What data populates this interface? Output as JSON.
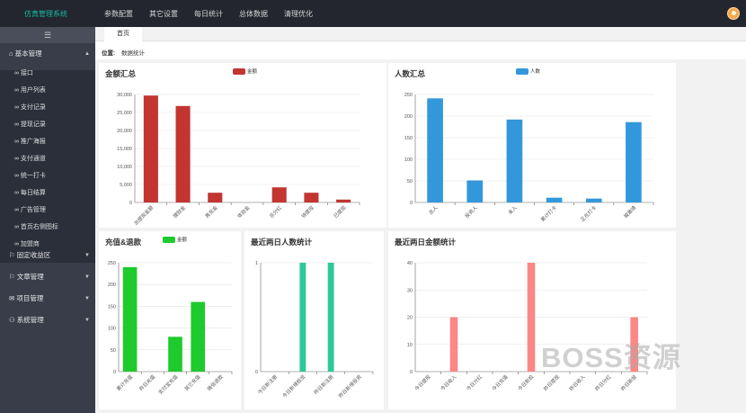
{
  "header": {
    "logo": "仿真管理系统",
    "nav": [
      "参数配置",
      "其它设置",
      "每日统计",
      "总体数据",
      "清理优化"
    ]
  },
  "sidebar": {
    "toggle_icon": "☰",
    "groups": [
      {
        "label": "⌂ 基本管理",
        "caret": "▲",
        "expanded": true
      },
      {
        "label": "⚐ 固定收益区",
        "caret": "▼"
      },
      {
        "label": "⚐ 文章管理",
        "caret": "▼"
      },
      {
        "label": "✉ 项目管理",
        "caret": "▼"
      },
      {
        "label": "⚇ 系统管理",
        "caret": "▼"
      }
    ],
    "items": [
      "∞ 接口",
      "∞ 用户列表",
      "∞ 支付记录",
      "∞ 提现记录",
      "∞ 推广海报",
      "∞ 支付通道",
      "∞ 统一打卡",
      "∞ 每日结算",
      "∞ 广告管理",
      "∞ 首页右侧图标",
      "∞ 加盟商"
    ]
  },
  "tabs": [
    "首页"
  ],
  "location": {
    "label": "位置:",
    "value": "数据统计"
  },
  "colors": {
    "red": "#c23531",
    "blue": "#3398db",
    "green": "#1fca2c",
    "teal": "#2ec79a",
    "pink": "#fb8786"
  },
  "watermark": "BOSS资源",
  "chart_data": [
    {
      "type": "bar",
      "title": "金额汇总",
      "series": [
        {
          "name": "金额",
          "values": [
            29700,
            26800,
            2700,
            0,
            4200,
            2700,
            800
          ]
        }
      ],
      "categories": [
        "总提现金额",
        "理财金",
        "再充金",
        "体验金",
        "总分红",
        "待提现",
        "已提现"
      ],
      "ylim": [
        0,
        30000
      ],
      "yticks": [
        "0",
        "5,000",
        "10,000",
        "15,000",
        "20,000",
        "25,000",
        "30,000"
      ],
      "color": "#c23531",
      "legend": "top-center"
    },
    {
      "type": "bar",
      "title": "人数汇总",
      "series": [
        {
          "name": "人数",
          "values": [
            241,
            51,
            192,
            11,
            9,
            186
          ]
        }
      ],
      "categories": [
        "总人",
        "投资人",
        "未入",
        "累计打卡",
        "正在打卡",
        "被邀请"
      ],
      "ylim": [
        0,
        250
      ],
      "yticks": [
        "0",
        "50",
        "100",
        "150",
        "200",
        "250"
      ],
      "color": "#3398db",
      "legend": "top-center"
    },
    {
      "type": "bar",
      "title": "充值&退款",
      "series": [
        {
          "name": "金额",
          "values": [
            240,
            0,
            80,
            160,
            0
          ]
        }
      ],
      "categories": [
        "累计充值",
        "昨日充值",
        "支付宝充值",
        "其它充值",
        "微信退款"
      ],
      "ylim": [
        0,
        250
      ],
      "yticks": [
        "0",
        "50",
        "100",
        "150",
        "200",
        "250"
      ],
      "color": "#1fca2c",
      "legend": "top-center"
    },
    {
      "type": "bar",
      "title": "最近两日人数统计",
      "series": [
        {
          "name": "",
          "values": [
            0,
            1,
            1,
            0
          ]
        }
      ],
      "categories": [
        "今日新注册",
        "今日新增投资",
        "昨日新注册",
        "昨日新增投资"
      ],
      "ylim": [
        0,
        1
      ],
      "yticks": [
        "0",
        "1"
      ],
      "color": "#2ec79a"
    },
    {
      "type": "bar",
      "title": "最近两日金额统计",
      "series": [
        {
          "name": "",
          "values": [
            0,
            20,
            0,
            0,
            40,
            0,
            0,
            0,
            20
          ]
        }
      ],
      "categories": [
        "今日提现",
        "今日收入",
        "今日分红",
        "今日充值",
        "今日新投",
        "昨日提现",
        "昨日收入",
        "昨日分红",
        "昨日新投"
      ],
      "ylim": [
        0,
        40
      ],
      "yticks": [
        "0",
        "10",
        "20",
        "30",
        "40"
      ],
      "color": "#fb8786"
    }
  ]
}
